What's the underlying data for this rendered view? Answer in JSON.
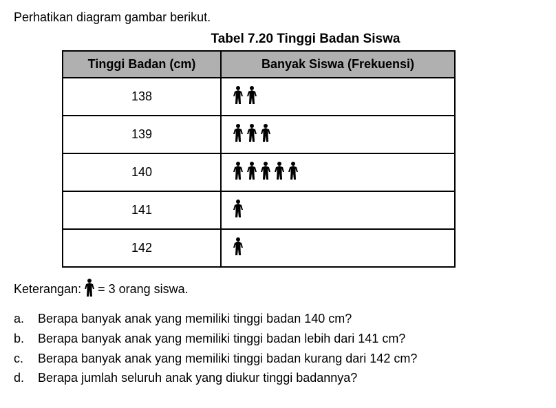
{
  "intro_text": "Perhatikan diagram gambar berikut.",
  "table_title": "Tabel 7.20 Tinggi Badan Siswa",
  "table": {
    "header_col1": "Tinggi Badan (cm)",
    "header_col2": "Banyak Siswa (Frekuensi)",
    "header_bg_color": "#b0b0b0",
    "border_color": "#000000",
    "rows": [
      {
        "height": "138",
        "icon_count": 2
      },
      {
        "height": "139",
        "icon_count": 3
      },
      {
        "height": "140",
        "icon_count": 5
      },
      {
        "height": "141",
        "icon_count": 1
      },
      {
        "height": "142",
        "icon_count": 1
      }
    ]
  },
  "legend": {
    "prefix": "Keterangan:",
    "suffix": "= 3 orang siswa."
  },
  "questions": [
    {
      "letter": "a.",
      "text": "Berapa banyak anak yang memiliki tinggi badan 140 cm?"
    },
    {
      "letter": "b.",
      "text": "Berapa banyak anak yang memiliki tinggi badan lebih dari 141 cm?"
    },
    {
      "letter": "c.",
      "text": "Berapa banyak anak yang memiliki tinggi badan kurang dari 142 cm?"
    },
    {
      "letter": "d.",
      "text": "Berapa jumlah seluruh anak yang diukur tinggi badannya?"
    }
  ],
  "icon": {
    "fill_color": "#000000",
    "width": 18,
    "height": 28
  }
}
